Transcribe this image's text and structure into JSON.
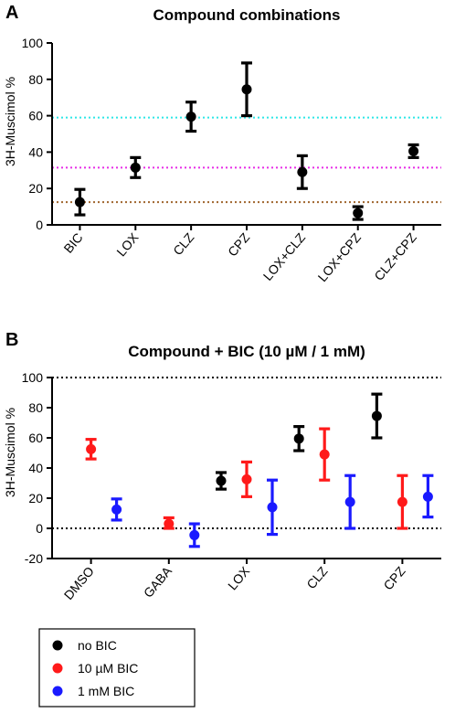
{
  "panel_a": {
    "label": "A",
    "chart_data": {
      "type": "scatter",
      "title": "Compound combinations",
      "ylabel": "3H-Muscimol %",
      "ylim": [
        0,
        100
      ],
      "yticks": [
        0,
        20,
        40,
        60,
        80,
        100
      ],
      "categories": [
        "BIC",
        "LOX",
        "CLZ",
        "CPZ",
        "LOX+CLZ",
        "LOX+CPZ",
        "CLZ+CPZ"
      ],
      "series": [
        {
          "color": "#000000",
          "mean": [
            12.5,
            31.5,
            59.5,
            74.5,
            29,
            6.5,
            40.5
          ],
          "low": [
            5.5,
            26,
            51.5,
            60,
            20,
            3,
            37
          ],
          "high": [
            19.5,
            37,
            67.5,
            89,
            38,
            10,
            44
          ]
        }
      ],
      "reference_lines": [
        {
          "y": 59,
          "color": "#2ee6e6"
        },
        {
          "y": 31.5,
          "color": "#e62ee6"
        },
        {
          "y": 12.5,
          "color": "#a0662e"
        }
      ],
      "grid": false
    }
  },
  "panel_b": {
    "label": "B",
    "chart_data": {
      "type": "scatter",
      "title": "Compound + BIC (10 µM / 1 mM)",
      "ylabel": "3H-Muscimol %",
      "ylim": [
        -20,
        100
      ],
      "yticks": [
        -20,
        0,
        20,
        40,
        60,
        80,
        100
      ],
      "categories": [
        "DMSO",
        "GABA",
        "LOX",
        "CLZ",
        "CPZ"
      ],
      "reference_lines": [
        {
          "y": 100,
          "color": "#000000"
        },
        {
          "y": 0,
          "color": "#000000"
        }
      ],
      "series": [
        {
          "name": "no BIC",
          "color": "#000000",
          "mean": [
            null,
            null,
            31.5,
            59.5,
            74.5
          ],
          "low": [
            null,
            null,
            26,
            51.5,
            60
          ],
          "high": [
            null,
            null,
            37,
            67.5,
            89
          ]
        },
        {
          "name": "10 µM BIC",
          "color": "#ff1a1a",
          "mean": [
            52.5,
            3,
            32.5,
            49,
            17.5
          ],
          "low": [
            46,
            0,
            21,
            32,
            0
          ],
          "high": [
            59,
            7,
            44,
            66,
            35
          ]
        },
        {
          "name": "1 mM BIC",
          "color": "#1a1aff",
          "mean": [
            12.5,
            -4.5,
            14,
            17.5,
            21
          ],
          "low": [
            5.5,
            -12,
            -4,
            0,
            7.5
          ],
          "high": [
            19.5,
            3,
            32,
            35,
            35
          ]
        }
      ],
      "legend_position": "bottom-left",
      "grid": false
    }
  }
}
